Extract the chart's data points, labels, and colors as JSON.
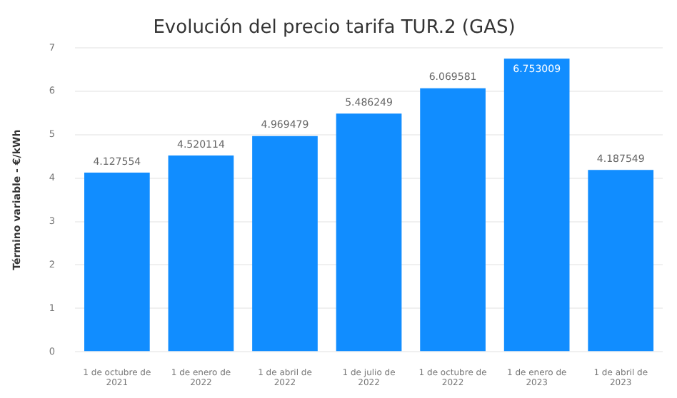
{
  "chart_data": {
    "type": "bar",
    "title": "Evolución del precio tarifa TUR.2 (GAS)",
    "ylabel": "Término variable - €/kWh",
    "categories": [
      "1 de octubre de 2021",
      "1 de enero de 2022",
      "1 de abril de 2022",
      "1 de julio de 2022",
      "1 de octubre de 2022",
      "1 de enero de 2023",
      "1 de abril de 2023"
    ],
    "values": [
      4.127554,
      4.520114,
      4.969479,
      5.486249,
      6.069581,
      6.753009,
      4.187549
    ],
    "color": "#118dff",
    "ylim": [
      0,
      7
    ],
    "yticks": [
      0,
      1,
      2,
      3,
      4,
      5,
      6,
      7
    ],
    "grid": "y",
    "data_labels": true,
    "legend": false
  }
}
